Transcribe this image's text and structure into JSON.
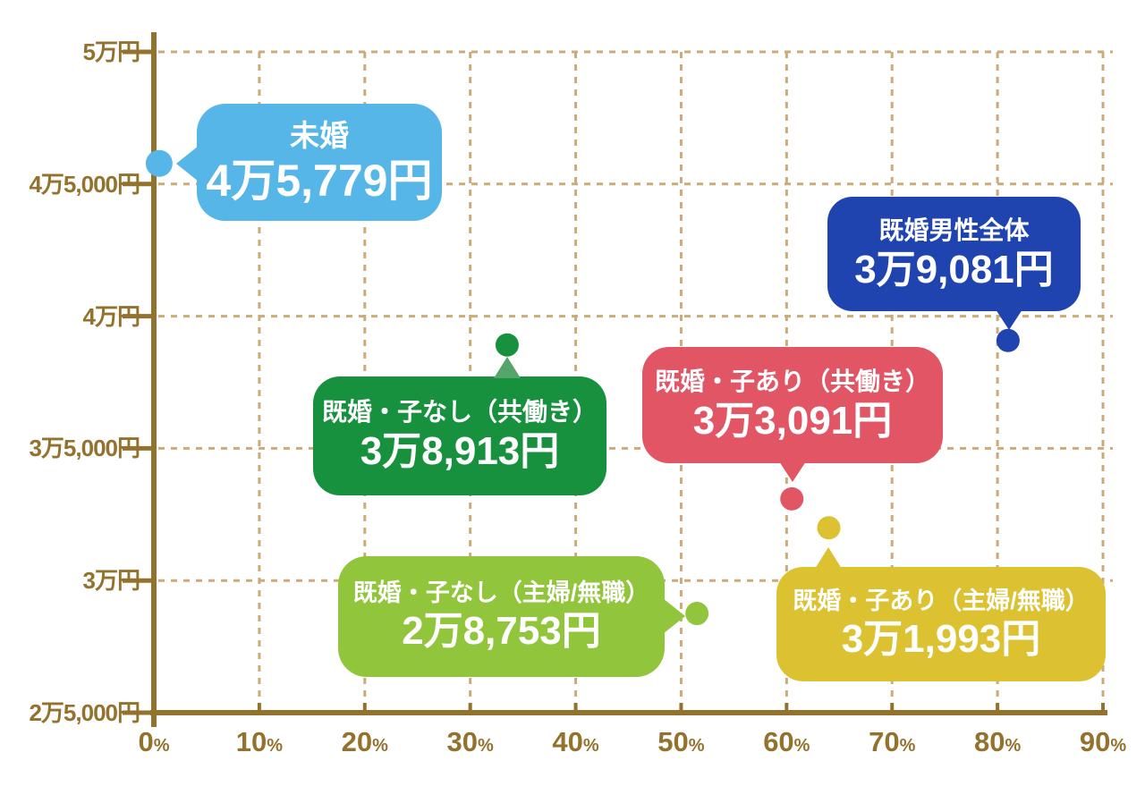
{
  "colors": {
    "axis": "#93722e",
    "grid": "#cbab79",
    "background": "#ffffff",
    "bubble_text": "#ffffff"
  },
  "chart_data": {
    "type": "scatter",
    "title": "",
    "xlabel": "",
    "ylabel": "",
    "x_unit": "%",
    "y_unit": "円",
    "xlim": [
      0,
      90
    ],
    "ylim": [
      25000,
      50000
    ],
    "grid": true,
    "legend": false,
    "x_ticks": [
      {
        "value": 0,
        "label": "0"
      },
      {
        "value": 10,
        "label": "10"
      },
      {
        "value": 20,
        "label": "20"
      },
      {
        "value": 30,
        "label": "30"
      },
      {
        "value": 40,
        "label": "40"
      },
      {
        "value": 50,
        "label": "50"
      },
      {
        "value": 60,
        "label": "60"
      },
      {
        "value": 70,
        "label": "70"
      },
      {
        "value": 80,
        "label": "80"
      },
      {
        "value": 90,
        "label": "90"
      }
    ],
    "y_ticks": [
      {
        "value": 50000,
        "label": "5万円"
      },
      {
        "value": 45000,
        "label": "4万5,000円"
      },
      {
        "value": 40000,
        "label": "4万円"
      },
      {
        "value": 35000,
        "label": "3万5,000円"
      },
      {
        "value": 30000,
        "label": "3万円"
      },
      {
        "value": 25000,
        "label": "2万5,000円"
      }
    ],
    "series": [
      {
        "name": "未婚",
        "x": 0.5,
        "y": 45779,
        "value_label": "4万5,779円",
        "color": "#56b6e8",
        "dot_r": 15
      },
      {
        "name": "既婚男性全体",
        "x": 81,
        "y": 39081,
        "value_label": "3万9,081円",
        "color": "#2044af",
        "dot_r": 13
      },
      {
        "name": "既婚・子なし（共働き）",
        "x": 33.5,
        "y": 38913,
        "value_label": "3万8,913円",
        "color": "#18913f",
        "tail_color": "#55a56b",
        "dot_r": 13
      },
      {
        "name": "既婚・子あり（共働き）",
        "x": 60.5,
        "y": 33091,
        "value_label": "3万3,091円",
        "color": "#e25565",
        "dot_r": 13
      },
      {
        "name": "既婚・子なし（主婦/無職）",
        "x": 51.5,
        "y": 28753,
        "value_label": "2万8,753円",
        "color": "#90c53c",
        "dot_r": 13
      },
      {
        "name": "既婚・子あり（主婦/無職）",
        "x": 64,
        "y": 31993,
        "value_label": "3万1,993円",
        "color": "#dcc130",
        "dot_r": 13
      }
    ]
  }
}
